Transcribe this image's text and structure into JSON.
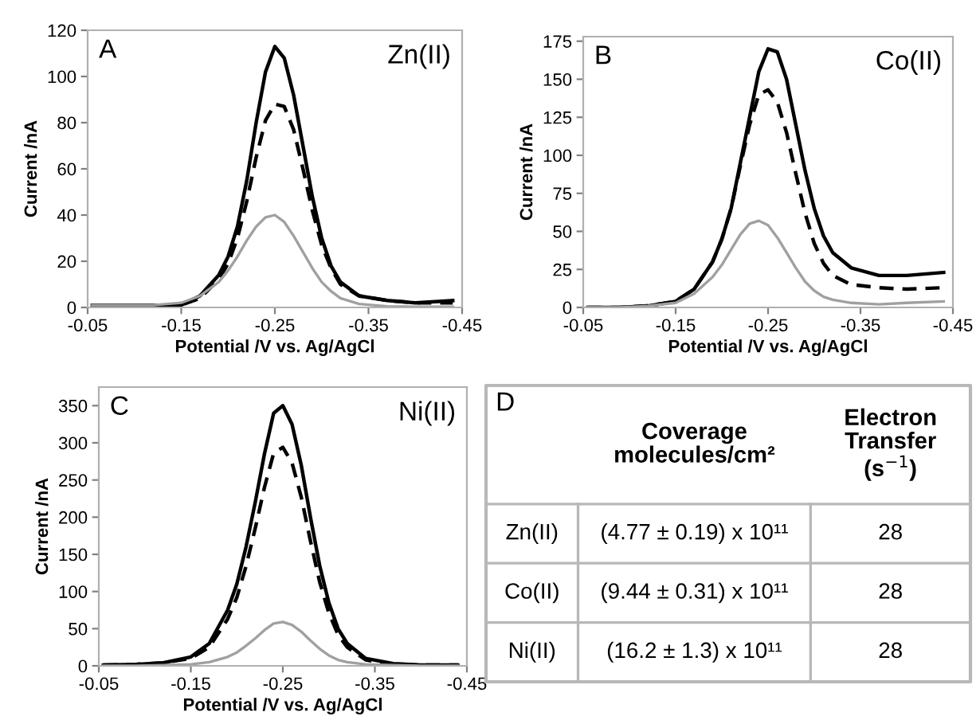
{
  "chart_data": [
    {
      "type": "line",
      "title": "A",
      "subtitle": "Zn(II)",
      "xlabel": "Potential /V vs. Ag/AgCl",
      "ylabel": "Current /nA",
      "x": [
        -0.055,
        -0.09,
        -0.12,
        -0.15,
        -0.17,
        -0.19,
        -0.2,
        -0.21,
        -0.22,
        -0.23,
        -0.24,
        -0.25,
        -0.26,
        -0.27,
        -0.28,
        -0.29,
        -0.3,
        -0.31,
        -0.32,
        -0.34,
        -0.37,
        -0.4,
        -0.44
      ],
      "series": [
        {
          "color": "#000000",
          "line_style": "solid",
          "values": [
            1,
            1,
            1,
            1,
            5,
            14,
            22,
            35,
            55,
            80,
            102,
            113,
            108,
            92,
            70,
            48,
            30,
            18,
            11,
            5,
            3,
            2,
            3
          ]
        },
        {
          "color": "#000000",
          "line_style": "dashed",
          "values": [
            0.5,
            0.5,
            0.5,
            1,
            4,
            12,
            19,
            30,
            46,
            65,
            81,
            88,
            87,
            77,
            60,
            42,
            27,
            17,
            10,
            5,
            3,
            2,
            2
          ]
        },
        {
          "color": "#a0a0a0",
          "line_style": "solid",
          "values": [
            1,
            1,
            1,
            2,
            5,
            11,
            16,
            22,
            29,
            35,
            39,
            40,
            37,
            31,
            24,
            17,
            11,
            7,
            4,
            1.5,
            0.5,
            0.3,
            0.3
          ]
        }
      ],
      "xlim": [
        -0.05,
        -0.45
      ],
      "xticks": [
        -0.05,
        -0.15,
        -0.25,
        -0.35,
        -0.45
      ],
      "ylim": [
        0,
        120
      ],
      "yticks": [
        0,
        20,
        40,
        60,
        80,
        100,
        120
      ],
      "grid": false,
      "legend": false,
      "marker": "none"
    },
    {
      "type": "line",
      "title": "B",
      "subtitle": "Co(II)",
      "xlabel": "Potential /V vs. Ag/AgCl",
      "ylabel": "Current /nA",
      "x": [
        -0.055,
        -0.09,
        -0.12,
        -0.15,
        -0.17,
        -0.19,
        -0.2,
        -0.21,
        -0.22,
        -0.23,
        -0.24,
        -0.25,
        -0.26,
        -0.27,
        -0.28,
        -0.29,
        -0.3,
        -0.31,
        -0.32,
        -0.34,
        -0.37,
        -0.4,
        -0.44
      ],
      "series": [
        {
          "color": "#000000",
          "line_style": "solid",
          "values": [
            0,
            0,
            1,
            4,
            12,
            30,
            45,
            65,
            95,
            125,
            155,
            170,
            168,
            150,
            120,
            90,
            65,
            47,
            36,
            26,
            21,
            21,
            23
          ]
        },
        {
          "color": "#000000",
          "line_style": "dashed",
          "values": [
            0,
            0,
            1,
            4,
            12,
            30,
            45,
            65,
            93,
            120,
            140,
            143,
            135,
            115,
            88,
            62,
            42,
            29,
            21,
            15,
            13,
            12,
            13
          ]
        },
        {
          "color": "#a0a0a0",
          "line_style": "solid",
          "values": [
            0,
            0,
            1,
            3,
            9,
            20,
            28,
            38,
            48,
            55,
            57,
            54,
            46,
            36,
            26,
            17,
            11,
            7,
            5,
            3,
            2,
            3,
            4
          ]
        }
      ],
      "xlim": [
        -0.05,
        -0.45
      ],
      "xticks": [
        -0.05,
        -0.15,
        -0.25,
        -0.35,
        -0.45
      ],
      "ylim": [
        0,
        178
      ],
      "yticks": [
        0,
        25,
        50,
        75,
        100,
        125,
        150,
        175
      ],
      "grid": false,
      "legend": false,
      "marker": "none"
    },
    {
      "type": "line",
      "title": "C",
      "subtitle": "Ni(II)",
      "xlabel": "Potential /V vs. Ag/AgCl",
      "ylabel": "Current /nA",
      "x": [
        -0.055,
        -0.09,
        -0.12,
        -0.15,
        -0.17,
        -0.19,
        -0.2,
        -0.21,
        -0.22,
        -0.23,
        -0.24,
        -0.25,
        -0.26,
        -0.27,
        -0.28,
        -0.29,
        -0.3,
        -0.31,
        -0.32,
        -0.34,
        -0.37,
        -0.4,
        -0.44
      ],
      "series": [
        {
          "color": "#000000",
          "line_style": "solid",
          "values": [
            1,
            2,
            4,
            12,
            30,
            75,
            110,
            160,
            220,
            285,
            340,
            350,
            325,
            270,
            200,
            135,
            85,
            50,
            30,
            10,
            3,
            1,
            1
          ]
        },
        {
          "color": "#000000",
          "line_style": "dashed",
          "values": [
            1,
            2,
            4,
            10,
            25,
            63,
            92,
            134,
            185,
            240,
            286,
            294,
            273,
            227,
            168,
            113,
            71,
            42,
            25,
            8,
            2,
            1,
            1
          ]
        },
        {
          "color": "#a0a0a0",
          "line_style": "solid",
          "values": [
            0,
            0,
            1,
            2,
            5,
            12,
            18,
            27,
            37,
            48,
            57,
            59,
            55,
            46,
            34,
            23,
            14,
            8,
            5,
            2,
            1,
            0,
            0
          ]
        }
      ],
      "xlim": [
        -0.05,
        -0.45
      ],
      "xticks": [
        -0.05,
        -0.15,
        -0.25,
        -0.35,
        -0.45
      ],
      "ylim": [
        0,
        375
      ],
      "yticks": [
        0,
        50,
        100,
        150,
        200,
        250,
        300,
        350
      ],
      "grid": false,
      "legend": false,
      "marker": "none"
    },
    {
      "type": "other",
      "title": "D",
      "annotations": [
        "Coverage\nmolecules/cm²",
        "Electron\nTransfer\n(s$^{−1}$)",
        "Zn(II)",
        "(4.77 ± 0.19) x 10¹¹",
        "28",
        "Co(II)",
        "(9.44 ± 0.31) x 10¹¹",
        "28",
        "Ni(II)",
        "(16.2 ± 1.3) x 10¹¹",
        "28"
      ]
    }
  ]
}
